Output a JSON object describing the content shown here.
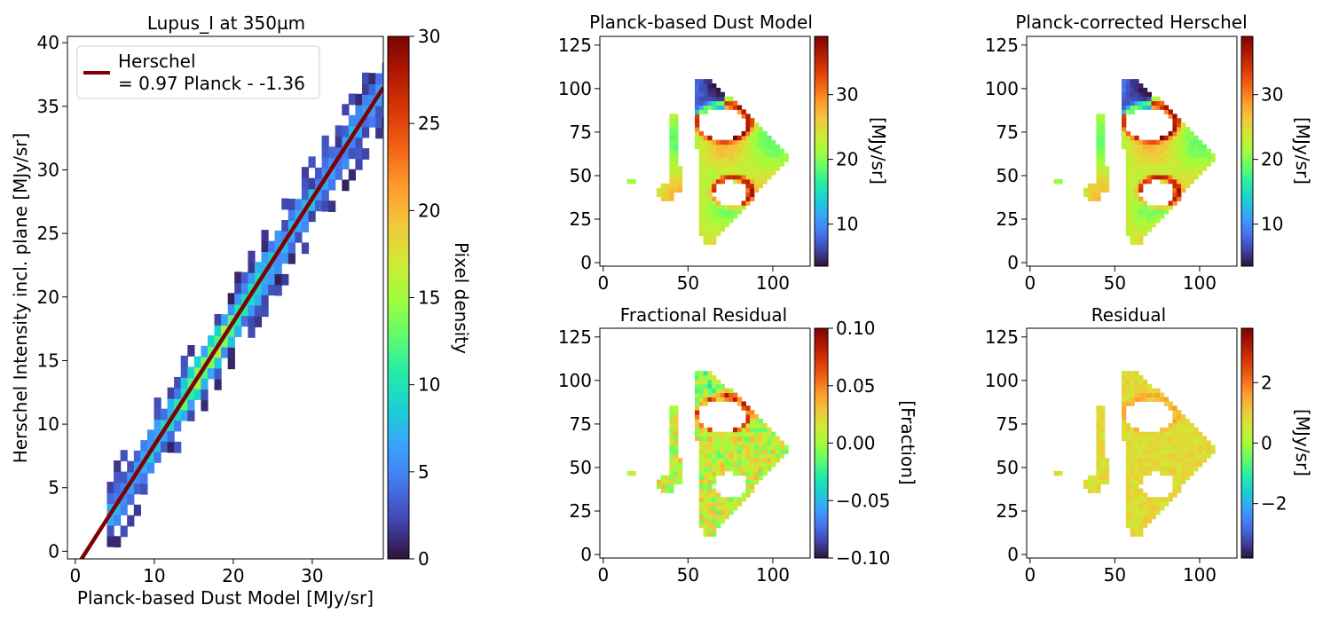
{
  "colormap_stops": [
    "#30123b",
    "#4145ab",
    "#4675ed",
    "#39a2fc",
    "#1bcfd4",
    "#24eca6",
    "#61fc6c",
    "#a4fc3b",
    "#d1e834",
    "#f3c63a",
    "#fe9b2d",
    "#f36315",
    "#d93806",
    "#b11901",
    "#7a0402"
  ],
  "chart_data": [
    {
      "type": "heatmap",
      "id": "hist",
      "title": "Lupus_I at 350µm",
      "xlabel": "Planck-based Dust Model [MJy/sr]",
      "ylabel": "Herschel Intensity incl. plane [MJy/sr]",
      "xlim": [
        -1,
        39
      ],
      "ylim": [
        -0.6,
        40.5
      ],
      "xticks": [
        0,
        10,
        20,
        30
      ],
      "yticks": [
        0,
        5,
        10,
        15,
        20,
        25,
        30,
        35,
        40
      ],
      "colorbar": {
        "label": "Pixel density",
        "range": [
          0,
          30
        ],
        "ticks": [
          0,
          5,
          10,
          15,
          20,
          25,
          30
        ]
      },
      "fit": {
        "slope": 0.97,
        "intercept": -1.36,
        "x_range": [
          0,
          39
        ],
        "color": "#800000"
      },
      "legend": {
        "position": "top-left",
        "label_line1": "Herschel",
        "label_line2": "= 0.97 Planck - -1.36"
      },
      "grid": false
    },
    {
      "type": "heatmap",
      "id": "model",
      "title": "Planck-based Dust Model",
      "xlim": [
        -2,
        122
      ],
      "ylim": [
        -2,
        130
      ],
      "xticks": [
        0,
        50,
        100
      ],
      "yticks": [
        0,
        25,
        50,
        75,
        100,
        125
      ],
      "colorbar": {
        "label": "[MJy/sr]",
        "range": [
          3.5,
          39
        ],
        "ticks": [
          10,
          20,
          30
        ]
      }
    },
    {
      "type": "heatmap",
      "id": "corrected",
      "title": "Planck-corrected Herschel",
      "xlim": [
        -2,
        122
      ],
      "ylim": [
        -2,
        130
      ],
      "xticks": [
        0,
        50,
        100
      ],
      "yticks": [
        0,
        25,
        50,
        75,
        100,
        125
      ],
      "colorbar": {
        "label": "[MJy/sr]",
        "range": [
          3.5,
          39
        ],
        "ticks": [
          10,
          20,
          30
        ]
      }
    },
    {
      "type": "heatmap",
      "id": "fracres",
      "title": "Fractional Residual",
      "xlim": [
        -2,
        122
      ],
      "ylim": [
        -2,
        130
      ],
      "xticks": [
        0,
        50,
        100
      ],
      "yticks": [
        0,
        25,
        50,
        75,
        100,
        125
      ],
      "colorbar": {
        "label": "[Fraction]",
        "range": [
          -0.1,
          0.1
        ],
        "ticks": [
          "0.10",
          "0.05",
          "0.00",
          "−0.05",
          "−0.10"
        ],
        "tick_values": [
          0.1,
          0.05,
          0,
          -0.05,
          -0.1
        ]
      }
    },
    {
      "type": "heatmap",
      "id": "resid",
      "title": "Residual",
      "xlim": [
        -2,
        122
      ],
      "ylim": [
        -2,
        130
      ],
      "xticks": [
        0,
        50,
        100
      ],
      "yticks": [
        0,
        25,
        50,
        75,
        100,
        125
      ],
      "colorbar": {
        "label": "[MJy/sr]",
        "range": [
          -3.8,
          3.8
        ],
        "ticks": [
          "2",
          "0",
          "−2"
        ],
        "tick_values": [
          2,
          0,
          -2
        ]
      }
    }
  ]
}
